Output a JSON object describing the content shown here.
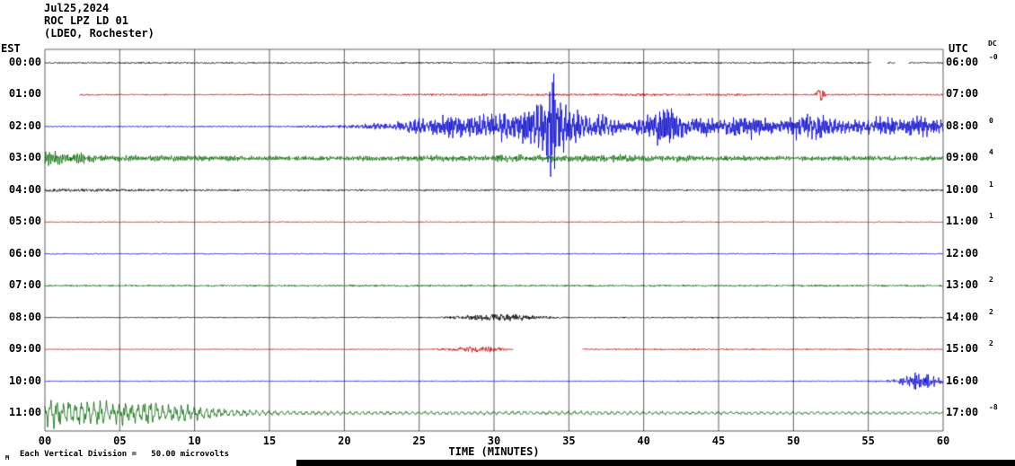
{
  "header": {
    "date": "Jul25,2024",
    "station_line": "ROC LPZ LD 01",
    "location_line": "(LDEO, Rochester)"
  },
  "labels": {
    "left_axis": "EST",
    "right_axis": "UTC",
    "right_axis_sub": "DC",
    "x_axis": "TIME (MINUTES)",
    "scale_note_prefix": "M",
    "scale_note": "Each Vertical Division =   50.00 microvolts"
  },
  "chart_data": {
    "type": "line",
    "title": "ROC LPZ LD 01 helicorder (LDEO, Rochester) Jul25,2024",
    "x_label": "TIME (MINUTES)",
    "x_range_minutes": [
      0,
      60
    ],
    "x_ticks": [
      "00",
      "05",
      "10",
      "15",
      "20",
      "25",
      "30",
      "35",
      "40",
      "45",
      "50",
      "55",
      "60"
    ],
    "grid": true,
    "vertical_division": "50.00 microvolts",
    "trace_colors_cycle": [
      "#000000",
      "#cc0000",
      "#0000cc",
      "#006600"
    ],
    "rows": [
      {
        "est": "00:00",
        "utc": "06:00",
        "right_value": "-0",
        "color": "#000000",
        "start_minute": 0,
        "gaps": [
          [
            55.2,
            56.3
          ],
          [
            56.8,
            57.7
          ]
        ],
        "freq1": 30,
        "freq2": 47,
        "jitter": 0.85,
        "seed": 11,
        "envelope": [
          [
            0,
            0.9
          ],
          [
            60,
            0.9
          ]
        ]
      },
      {
        "est": "01:00",
        "utc": "07:00",
        "right_value": "",
        "color": "#cc0000",
        "start_minute": 2.3,
        "gaps": [],
        "freq1": 28,
        "freq2": 44,
        "jitter": 0.8,
        "seed": 22,
        "envelope": [
          [
            2.3,
            1.5
          ],
          [
            3.2,
            1.0
          ],
          [
            6,
            0.8
          ],
          [
            20,
            0.8
          ],
          [
            24,
            1.1
          ],
          [
            28,
            1.4
          ],
          [
            31,
            1.2
          ],
          [
            34,
            1.4
          ],
          [
            38,
            1.3
          ],
          [
            40.5,
            1.8
          ],
          [
            42,
            1.1
          ],
          [
            46,
            1.4
          ],
          [
            48,
            1.0
          ],
          [
            51.4,
            0.9
          ],
          [
            51.8,
            10
          ],
          [
            52.2,
            1.0
          ],
          [
            56,
            1.0
          ],
          [
            60,
            1.1
          ]
        ]
      },
      {
        "est": "02:00",
        "utc": "08:00",
        "right_value": "0",
        "color": "#0000cc",
        "start_minute": 0,
        "gaps": [],
        "freq1": 22,
        "freq2": 37,
        "jitter": 0.3,
        "seed": 33,
        "envelope": [
          [
            0,
            0.9
          ],
          [
            16,
            1.0
          ],
          [
            19,
            1.8
          ],
          [
            21,
            3
          ],
          [
            22,
            5
          ],
          [
            23,
            4
          ],
          [
            24,
            8
          ],
          [
            25,
            12
          ],
          [
            25.7,
            8
          ],
          [
            26.5,
            14
          ],
          [
            27.3,
            18
          ],
          [
            28,
            12
          ],
          [
            29,
            20
          ],
          [
            29.8,
            14
          ],
          [
            30.6,
            22
          ],
          [
            31.4,
            18
          ],
          [
            32.2,
            26
          ],
          [
            33,
            34
          ],
          [
            33.6,
            48
          ],
          [
            33.9,
            75
          ],
          [
            34.3,
            46
          ],
          [
            34.8,
            30
          ],
          [
            35.4,
            22
          ],
          [
            36.2,
            14
          ],
          [
            37,
            17
          ],
          [
            38,
            11
          ],
          [
            39,
            8
          ],
          [
            40,
            14
          ],
          [
            41,
            24
          ],
          [
            41.7,
            30
          ],
          [
            42.4,
            16
          ],
          [
            43.2,
            9
          ],
          [
            44,
            13
          ],
          [
            45,
            9
          ],
          [
            46,
            13
          ],
          [
            47,
            17
          ],
          [
            48,
            11
          ],
          [
            49,
            8
          ],
          [
            50,
            15
          ],
          [
            51,
            21
          ],
          [
            52,
            15
          ],
          [
            53,
            9
          ],
          [
            54,
            8
          ],
          [
            55,
            11
          ],
          [
            56,
            15
          ],
          [
            57,
            10
          ],
          [
            58,
            14
          ],
          [
            59,
            13
          ],
          [
            60,
            9
          ]
        ]
      },
      {
        "est": "03:00",
        "utc": "09:00",
        "right_value": "4",
        "color": "#006600",
        "start_minute": 0,
        "gaps": [],
        "freq1": 8,
        "freq2": 19,
        "jitter": 0.45,
        "seed": 44,
        "envelope": [
          [
            0,
            12
          ],
          [
            0.7,
            9
          ],
          [
            1.5,
            7
          ],
          [
            2.5,
            7.5
          ],
          [
            3.5,
            5.5
          ],
          [
            5,
            4.5
          ],
          [
            7,
            3.8
          ],
          [
            9,
            4
          ],
          [
            11,
            3.4
          ],
          [
            14,
            3
          ],
          [
            18,
            3
          ],
          [
            22,
            3.2
          ],
          [
            25,
            4
          ],
          [
            27,
            4.5
          ],
          [
            29,
            4
          ],
          [
            31,
            5
          ],
          [
            33,
            4.5
          ],
          [
            35,
            5
          ],
          [
            37,
            4.5
          ],
          [
            39,
            5.2
          ],
          [
            41,
            4.5
          ],
          [
            43,
            4.2
          ],
          [
            45,
            3.8
          ],
          [
            48,
            3.4
          ],
          [
            52,
            3.2
          ],
          [
            56,
            3.2
          ],
          [
            60,
            3
          ]
        ]
      },
      {
        "est": "04:00",
        "utc": "10:00",
        "right_value": "1",
        "color": "#000000",
        "start_minute": 0,
        "gaps": [],
        "freq1": 30,
        "freq2": 45,
        "jitter": 0.85,
        "seed": 55,
        "envelope": [
          [
            0,
            2
          ],
          [
            3,
            1.8
          ],
          [
            6,
            1.4
          ],
          [
            10,
            1.1
          ],
          [
            15,
            1.0
          ],
          [
            60,
            0.9
          ]
        ]
      },
      {
        "est": "05:00",
        "utc": "11:00",
        "right_value": "1",
        "color": "#cc0000",
        "start_minute": 0,
        "gaps": [],
        "freq1": 30,
        "freq2": 45,
        "jitter": 0.85,
        "seed": 66,
        "envelope": [
          [
            0,
            0.6
          ],
          [
            60,
            0.6
          ]
        ]
      },
      {
        "est": "06:00",
        "utc": "12:00",
        "right_value": "",
        "color": "#0000cc",
        "start_minute": 0,
        "gaps": [],
        "freq1": 30,
        "freq2": 45,
        "jitter": 0.85,
        "seed": 77,
        "envelope": [
          [
            0,
            0.6
          ],
          [
            60,
            0.6
          ]
        ]
      },
      {
        "est": "07:00",
        "utc": "13:00",
        "right_value": "2",
        "color": "#006600",
        "start_minute": 0,
        "gaps": [],
        "freq1": 12,
        "freq2": 26,
        "jitter": 0.55,
        "seed": 88,
        "envelope": [
          [
            0,
            1.3
          ],
          [
            60,
            1.3
          ]
        ]
      },
      {
        "est": "08:00",
        "utc": "14:00",
        "right_value": "2",
        "color": "#000000",
        "start_minute": 0,
        "gaps": [],
        "freq1": 18,
        "freq2": 36,
        "jitter": 0.6,
        "seed": 99,
        "envelope": [
          [
            0,
            0.7
          ],
          [
            25.5,
            0.7
          ],
          [
            26.5,
            1.2
          ],
          [
            27.5,
            2.5
          ],
          [
            28.5,
            4
          ],
          [
            29.5,
            5
          ],
          [
            30.5,
            4.5
          ],
          [
            31.5,
            5
          ],
          [
            32.5,
            3.5
          ],
          [
            33.5,
            2
          ],
          [
            34.5,
            1.2
          ],
          [
            36,
            0.9
          ],
          [
            60,
            0.8
          ]
        ]
      },
      {
        "est": "09:00",
        "utc": "15:00",
        "right_value": "2",
        "color": "#cc0000",
        "start_minute": 0,
        "gaps": [
          [
            31.3,
            35.9
          ]
        ],
        "freq1": 20,
        "freq2": 38,
        "jitter": 0.6,
        "seed": 110,
        "envelope": [
          [
            0,
            0.6
          ],
          [
            25,
            0.6
          ],
          [
            26,
            1.1
          ],
          [
            27.5,
            2.5
          ],
          [
            29,
            4.5
          ],
          [
            30,
            3.5
          ],
          [
            30.9,
            1.6
          ],
          [
            31.2,
            0.7
          ],
          [
            36,
            0.8
          ],
          [
            38,
            1.0
          ],
          [
            44,
            1.0
          ],
          [
            50,
            0.9
          ],
          [
            60,
            0.8
          ]
        ]
      },
      {
        "est": "10:00",
        "utc": "16:00",
        "right_value": "",
        "color": "#0000cc",
        "start_minute": 0,
        "gaps": [],
        "freq1": 9,
        "freq2": 22,
        "jitter": 0.45,
        "seed": 121,
        "envelope": [
          [
            0,
            0.7
          ],
          [
            54,
            0.7
          ],
          [
            56,
            1.2
          ],
          [
            57,
            3.5
          ],
          [
            57.7,
            9
          ],
          [
            58.3,
            13
          ],
          [
            59,
            10
          ],
          [
            59.5,
            6
          ],
          [
            60,
            4
          ]
        ]
      },
      {
        "est": "11:00",
        "utc": "17:00",
        "right_value": "-8",
        "color": "#006600",
        "start_minute": 0,
        "gaps": [],
        "freq1": 2.4,
        "freq2": 7,
        "jitter": 0.25,
        "seed": 132,
        "envelope": [
          [
            0,
            14
          ],
          [
            0.6,
            22
          ],
          [
            1.2,
            16
          ],
          [
            2,
            20
          ],
          [
            2.8,
            15
          ],
          [
            3.6,
            18
          ],
          [
            4.4,
            13
          ],
          [
            5.2,
            17
          ],
          [
            6,
            13
          ],
          [
            7,
            16
          ],
          [
            8,
            12
          ],
          [
            9,
            14
          ],
          [
            10,
            10
          ],
          [
            11,
            8
          ],
          [
            12,
            6
          ],
          [
            13,
            5
          ],
          [
            14,
            4
          ],
          [
            15,
            3.5
          ],
          [
            16,
            3
          ],
          [
            18,
            2.8
          ],
          [
            22,
            2.6
          ],
          [
            26,
            2.4
          ],
          [
            30,
            2.6
          ],
          [
            34,
            2.8
          ],
          [
            38,
            2.5
          ],
          [
            42,
            2.4
          ],
          [
            46,
            2.3
          ],
          [
            50,
            2.2
          ],
          [
            55,
            2.2
          ],
          [
            60,
            2.0
          ]
        ]
      }
    ]
  }
}
